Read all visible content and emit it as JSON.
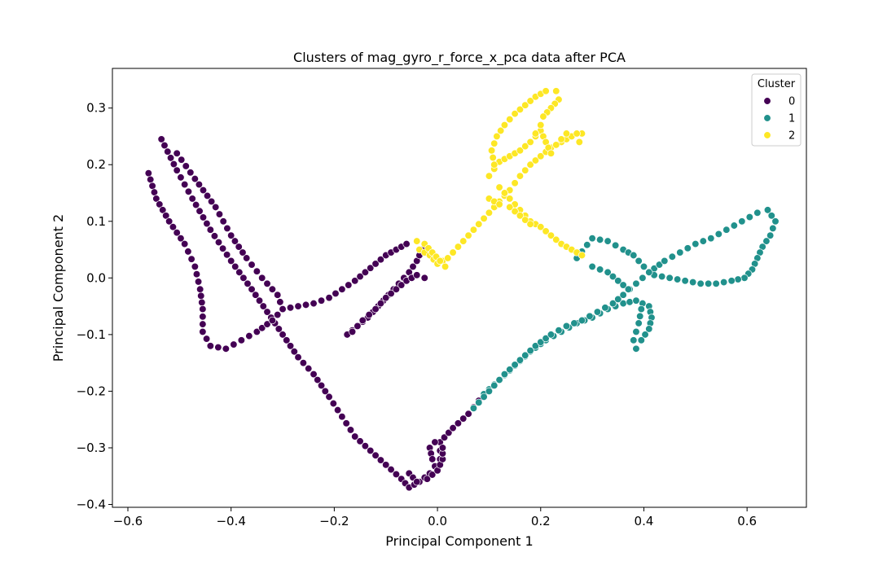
{
  "chart_data": {
    "type": "scatter",
    "title": "Clusters of mag_gyro_r_force_x_pca data after PCA",
    "xlabel": "Principal Component 1",
    "ylabel": "Principal Component 2",
    "xlim": [
      -0.63,
      0.715
    ],
    "ylim": [
      -0.405,
      0.37
    ],
    "xticks": [
      -0.6,
      -0.4,
      -0.2,
      0.0,
      0.2,
      0.4,
      0.6
    ],
    "xtick_labels": [
      "−0.6",
      "−0.4",
      "−0.2",
      "0.0",
      "0.2",
      "0.4",
      "0.6"
    ],
    "yticks": [
      -0.4,
      -0.3,
      -0.2,
      -0.1,
      0.0,
      0.1,
      0.2,
      0.3
    ],
    "ytick_labels": [
      "−0.4",
      "−0.3",
      "−0.2",
      "−0.1",
      "0.0",
      "0.1",
      "0.2",
      "0.3"
    ],
    "grid": false,
    "legend": {
      "title": "Cluster",
      "placement": "top-right"
    },
    "series": [
      {
        "name": "0",
        "color": "#440154",
        "paths": [
          [
            [
              -0.535,
              0.245
            ],
            [
              -0.505,
              0.19
            ],
            [
              -0.475,
              0.14
            ],
            [
              -0.44,
              0.085
            ],
            [
              -0.4,
              0.03
            ],
            [
              -0.36,
              -0.02
            ],
            [
              -0.33,
              -0.06
            ],
            [
              -0.3,
              -0.1
            ],
            [
              -0.27,
              -0.14
            ],
            [
              -0.24,
              -0.17
            ],
            [
              -0.21,
              -0.21
            ],
            [
              -0.185,
              -0.245
            ],
            [
              -0.16,
              -0.28
            ],
            [
              -0.13,
              -0.305
            ],
            [
              -0.1,
              -0.33
            ],
            [
              -0.07,
              -0.355
            ],
            [
              -0.055,
              -0.37
            ],
            [
              -0.035,
              -0.36
            ],
            [
              -0.015,
              -0.345
            ],
            [
              0.005,
              -0.32
            ],
            [
              0.005,
              -0.29
            ],
            [
              0.03,
              -0.265
            ],
            [
              0.06,
              -0.24
            ],
            [
              0.09,
              -0.205
            ]
          ],
          [
            [
              -0.56,
              0.185
            ],
            [
              -0.545,
              0.14
            ],
            [
              -0.52,
              0.1
            ],
            [
              -0.49,
              0.06
            ],
            [
              -0.47,
              0.02
            ],
            [
              -0.46,
              -0.02
            ],
            [
              -0.455,
              -0.055
            ],
            [
              -0.455,
              -0.095
            ],
            [
              -0.44,
              -0.12
            ],
            [
              -0.41,
              -0.125
            ],
            [
              -0.38,
              -0.11
            ],
            [
              -0.35,
              -0.095
            ],
            [
              -0.32,
              -0.075
            ],
            [
              -0.3,
              -0.055
            ],
            [
              -0.27,
              -0.05
            ],
            [
              -0.24,
              -0.045
            ],
            [
              -0.21,
              -0.035
            ],
            [
              -0.185,
              -0.02
            ],
            [
              -0.16,
              -0.005
            ],
            [
              -0.14,
              0.01
            ],
            [
              -0.12,
              0.025
            ],
            [
              -0.1,
              0.04
            ],
            [
              -0.08,
              0.05
            ],
            [
              -0.06,
              0.06
            ]
          ],
          [
            [
              -0.505,
              0.22
            ],
            [
              -0.47,
              0.175
            ],
            [
              -0.43,
              0.125
            ],
            [
              -0.4,
              0.075
            ],
            [
              -0.37,
              0.035
            ],
            [
              -0.34,
              0.0
            ],
            [
              -0.31,
              -0.03
            ],
            [
              -0.3,
              -0.055
            ]
          ],
          [
            [
              -0.175,
              -0.1
            ],
            [
              -0.155,
              -0.085
            ],
            [
              -0.135,
              -0.07
            ],
            [
              -0.115,
              -0.05
            ],
            [
              -0.095,
              -0.03
            ],
            [
              -0.075,
              -0.01
            ],
            [
              -0.055,
              0.01
            ],
            [
              -0.04,
              0.03
            ],
            [
              -0.03,
              0.05
            ]
          ],
          [
            [
              -0.165,
              -0.095
            ],
            [
              -0.145,
              -0.075
            ],
            [
              -0.12,
              -0.055
            ],
            [
              -0.1,
              -0.035
            ],
            [
              -0.08,
              -0.02
            ],
            [
              -0.06,
              -0.005
            ],
            [
              -0.04,
              0.005
            ],
            [
              -0.025,
              0.0
            ]
          ],
          [
            [
              -0.055,
              -0.345
            ],
            [
              -0.04,
              -0.36
            ],
            [
              -0.02,
              -0.355
            ],
            [
              0.0,
              -0.34
            ],
            [
              0.01,
              -0.32
            ],
            [
              0.01,
              -0.3
            ],
            [
              -0.005,
              -0.29
            ],
            [
              -0.015,
              -0.3
            ],
            [
              -0.01,
              -0.32
            ]
          ]
        ]
      },
      {
        "name": "1",
        "color": "#21918c",
        "paths": [
          [
            [
              0.09,
              -0.205
            ],
            [
              0.12,
              -0.18
            ],
            [
              0.15,
              -0.155
            ],
            [
              0.18,
              -0.13
            ],
            [
              0.21,
              -0.11
            ],
            [
              0.24,
              -0.095
            ],
            [
              0.27,
              -0.08
            ],
            [
              0.3,
              -0.07
            ],
            [
              0.33,
              -0.055
            ],
            [
              0.36,
              -0.045
            ],
            [
              0.385,
              -0.04
            ],
            [
              0.41,
              -0.05
            ],
            [
              0.415,
              -0.07
            ],
            [
              0.41,
              -0.09
            ],
            [
              0.395,
              -0.11
            ],
            [
              0.385,
              -0.125
            ],
            [
              0.38,
              -0.11
            ],
            [
              0.39,
              -0.08
            ],
            [
              0.395,
              -0.055
            ]
          ],
          [
            [
              0.07,
              -0.23
            ],
            [
              0.1,
              -0.2
            ],
            [
              0.13,
              -0.17
            ],
            [
              0.16,
              -0.145
            ],
            [
              0.19,
              -0.12
            ],
            [
              0.22,
              -0.1
            ],
            [
              0.25,
              -0.085
            ],
            [
              0.28,
              -0.075
            ],
            [
              0.31,
              -0.06
            ],
            [
              0.34,
              -0.045
            ],
            [
              0.36,
              -0.03
            ],
            [
              0.385,
              -0.01
            ],
            [
              0.41,
              0.01
            ],
            [
              0.44,
              0.03
            ],
            [
              0.47,
              0.045
            ],
            [
              0.5,
              0.06
            ],
            [
              0.53,
              0.07
            ],
            [
              0.56,
              0.085
            ],
            [
              0.59,
              0.1
            ],
            [
              0.62,
              0.115
            ],
            [
              0.64,
              0.12
            ],
            [
              0.655,
              0.1
            ],
            [
              0.645,
              0.075
            ],
            [
              0.63,
              0.055
            ],
            [
              0.62,
              0.035
            ],
            [
              0.61,
              0.015
            ],
            [
              0.595,
              0.0
            ],
            [
              0.57,
              -0.005
            ],
            [
              0.54,
              -0.01
            ],
            [
              0.51,
              -0.01
            ],
            [
              0.48,
              -0.005
            ],
            [
              0.45,
              0.0
            ],
            [
              0.42,
              0.005
            ]
          ],
          [
            [
              0.27,
              0.035
            ],
            [
              0.3,
              0.07
            ],
            [
              0.33,
              0.065
            ],
            [
              0.36,
              0.05
            ],
            [
              0.38,
              0.04
            ],
            [
              0.4,
              0.02
            ],
            [
              0.41,
              0.01
            ]
          ],
          [
            [
              0.3,
              0.02
            ],
            [
              0.33,
              0.01
            ],
            [
              0.35,
              -0.005
            ],
            [
              0.37,
              -0.02
            ]
          ]
        ]
      },
      {
        "name": "2",
        "color": "#fde725",
        "paths": [
          [
            [
              -0.035,
              0.05
            ],
            [
              -0.015,
              0.04
            ],
            [
              0.0,
              0.025
            ],
            [
              0.02,
              0.035
            ],
            [
              0.04,
              0.055
            ],
            [
              0.06,
              0.075
            ],
            [
              0.08,
              0.095
            ],
            [
              0.1,
              0.115
            ],
            [
              0.12,
              0.135
            ],
            [
              0.14,
              0.155
            ],
            [
              0.16,
              0.18
            ],
            [
              0.18,
              0.2
            ],
            [
              0.2,
              0.215
            ],
            [
              0.22,
              0.23
            ],
            [
              0.24,
              0.24
            ],
            [
              0.26,
              0.25
            ],
            [
              0.28,
              0.255
            ]
          ],
          [
            [
              -0.04,
              0.065
            ],
            [
              -0.025,
              0.06
            ],
            [
              -0.01,
              0.045
            ],
            [
              0.005,
              0.03
            ],
            [
              0.015,
              0.02
            ]
          ],
          [
            [
              0.1,
              0.18
            ],
            [
              0.12,
              0.205
            ],
            [
              0.14,
              0.215
            ],
            [
              0.16,
              0.225
            ],
            [
              0.18,
              0.24
            ],
            [
              0.2,
              0.26
            ],
            [
              0.21,
              0.24
            ],
            [
              0.22,
              0.22
            ],
            [
              0.23,
              0.235
            ],
            [
              0.25,
              0.255
            ],
            [
              0.27,
              0.255
            ],
            [
              0.275,
              0.24
            ]
          ],
          [
            [
              0.11,
              0.2
            ],
            [
              0.105,
              0.225
            ],
            [
              0.115,
              0.25
            ],
            [
              0.13,
              0.27
            ],
            [
              0.15,
              0.29
            ],
            [
              0.17,
              0.305
            ],
            [
              0.19,
              0.32
            ],
            [
              0.21,
              0.33
            ],
            [
              0.23,
              0.33
            ],
            [
              0.235,
              0.315
            ],
            [
              0.22,
              0.3
            ],
            [
              0.205,
              0.285
            ],
            [
              0.2,
              0.27
            ],
            [
              0.19,
              0.255
            ]
          ],
          [
            [
              0.12,
              0.16
            ],
            [
              0.14,
              0.14
            ],
            [
              0.16,
              0.12
            ],
            [
              0.18,
              0.1
            ],
            [
              0.2,
              0.09
            ],
            [
              0.22,
              0.075
            ],
            [
              0.24,
              0.06
            ],
            [
              0.26,
              0.05
            ],
            [
              0.28,
              0.04
            ]
          ],
          [
            [
              0.1,
              0.14
            ],
            [
              0.12,
              0.13
            ],
            [
              0.14,
              0.125
            ],
            [
              0.16,
              0.11
            ],
            [
              0.18,
              0.095
            ]
          ]
        ]
      }
    ]
  }
}
